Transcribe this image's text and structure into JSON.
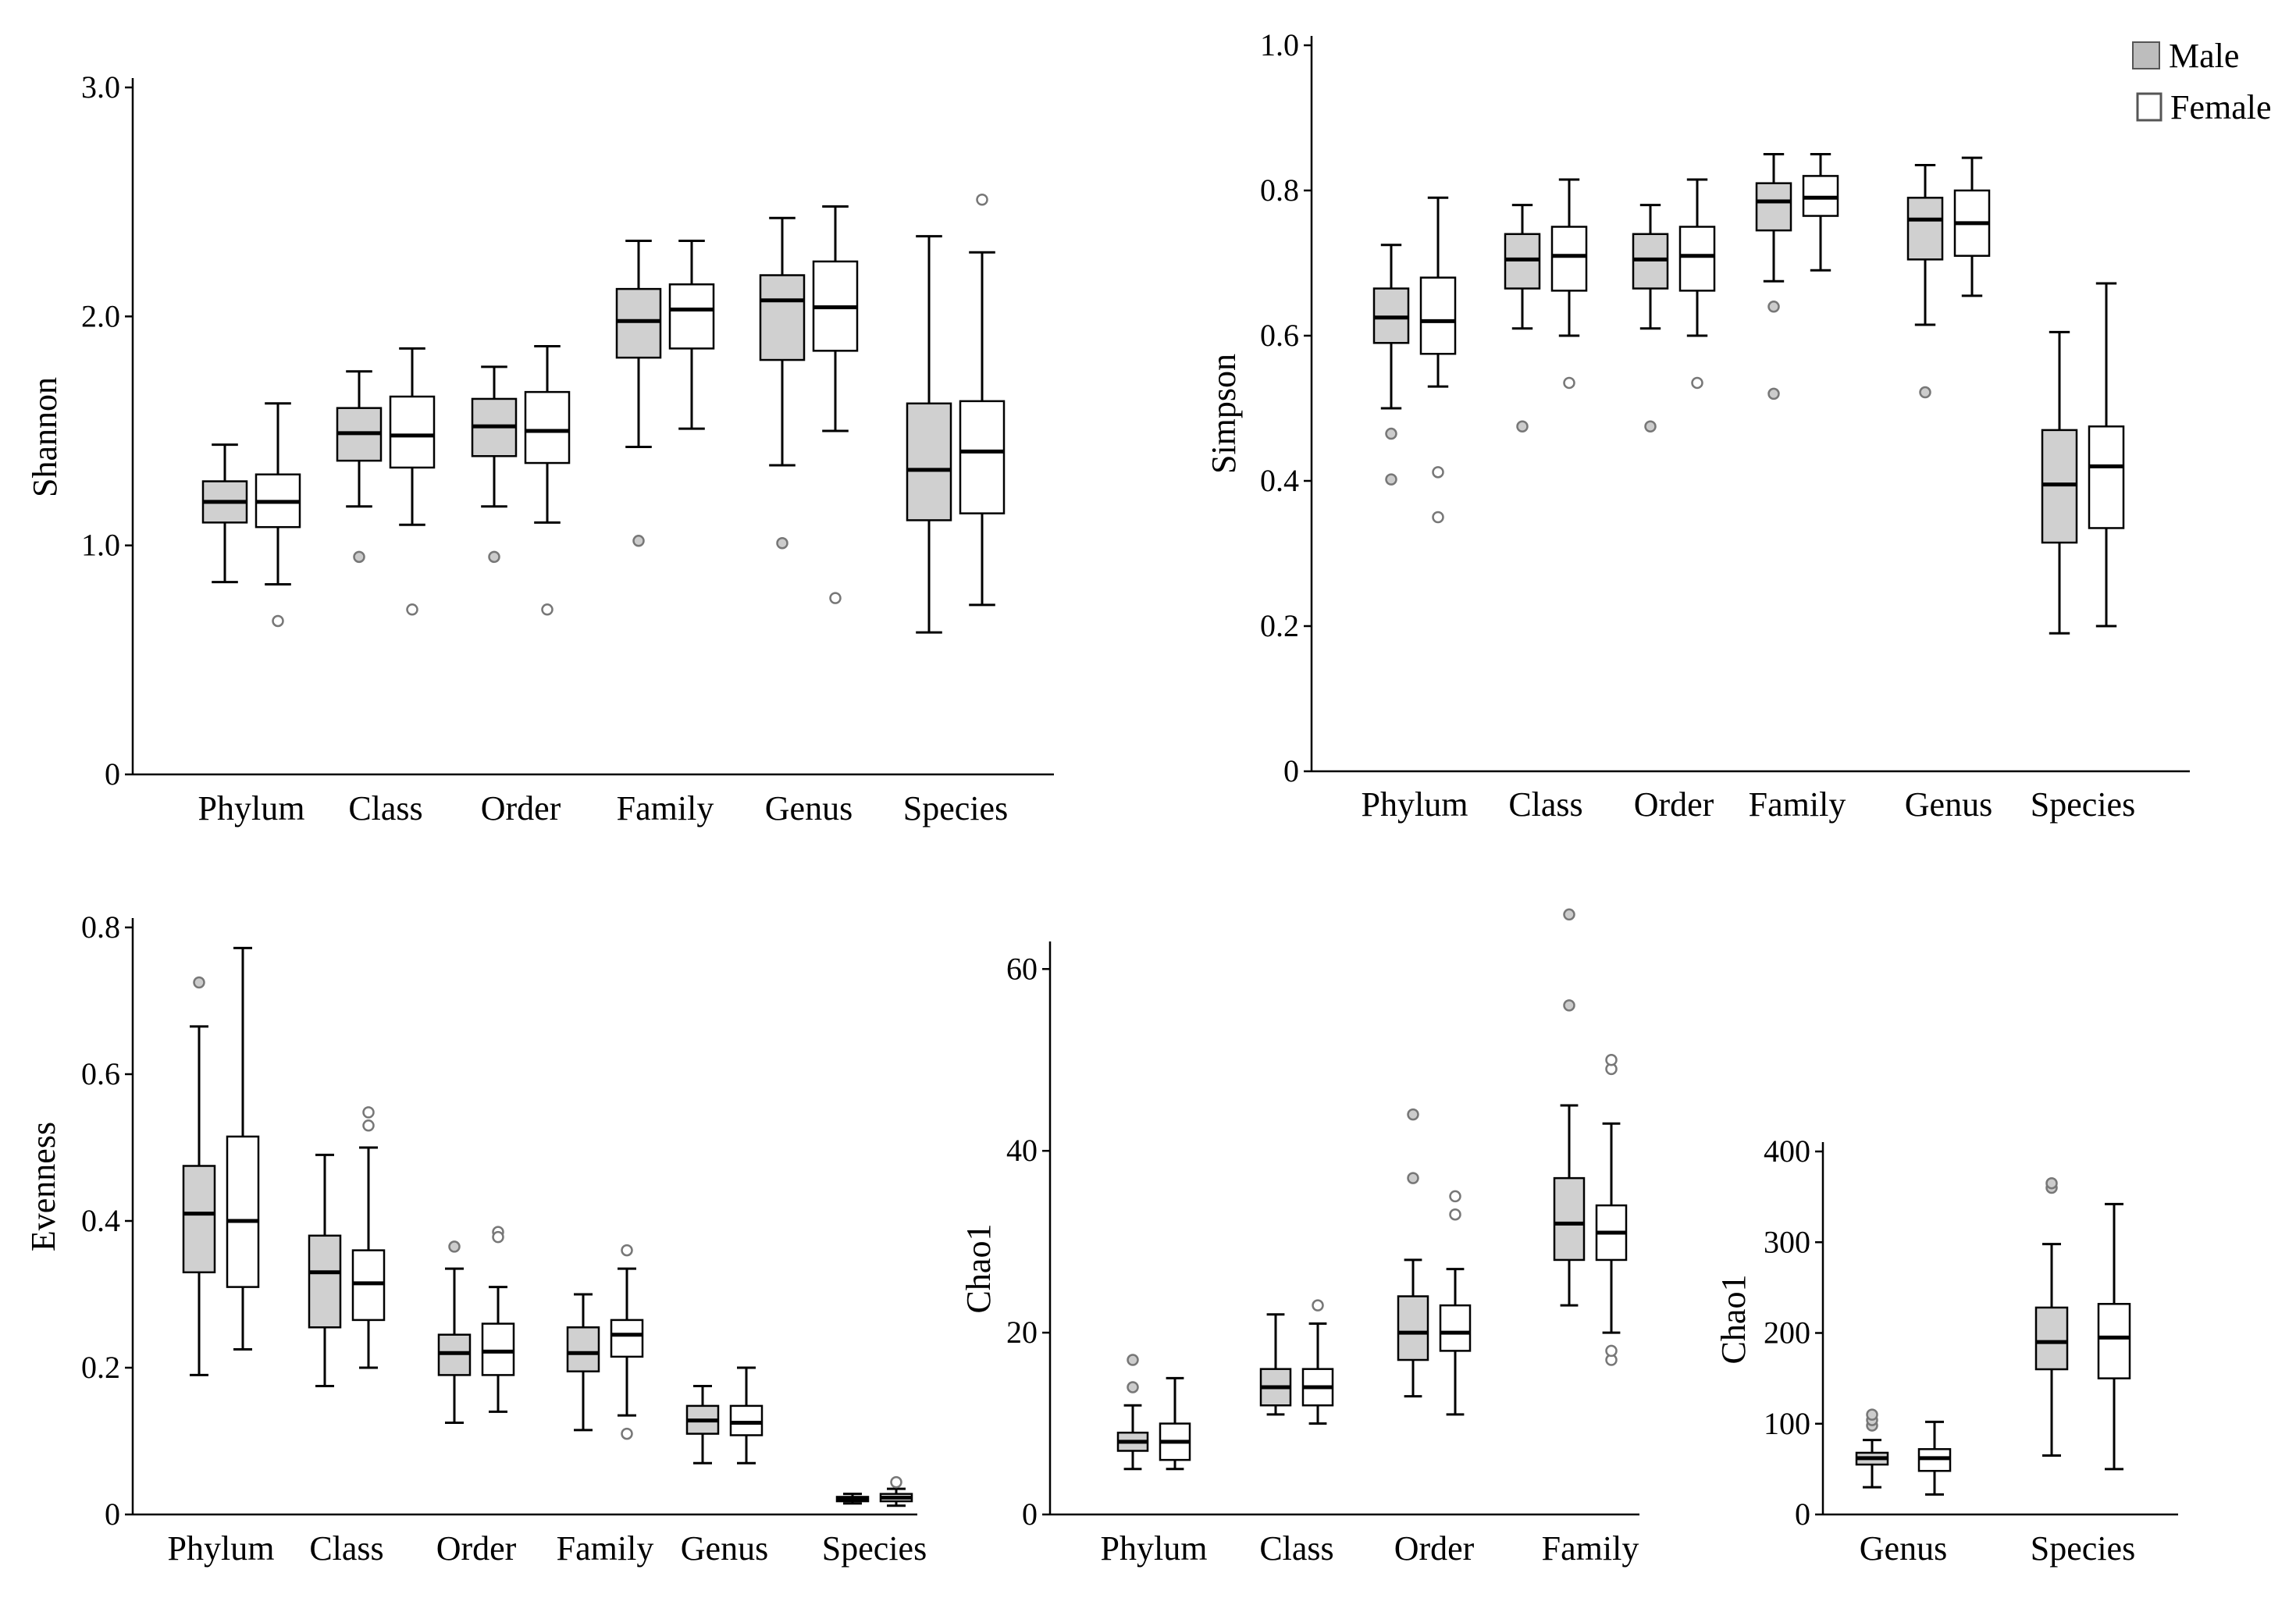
{
  "legend": {
    "male": "Male",
    "female": "Female"
  },
  "colors": {
    "male": "#d0d0d0",
    "female": "#ffffff",
    "stroke": "#000000",
    "outlier": "#777777"
  },
  "chart_data": [
    {
      "id": "shannon",
      "type": "box",
      "ylabel": "Shannon",
      "ylim": [
        0,
        3.0
      ],
      "yticks": [
        0,
        1.0,
        2.0,
        3.0
      ],
      "ytick_labels": [
        "0",
        "1.0",
        "2.0",
        "3.0"
      ],
      "categories": [
        "Phylum",
        "Class",
        "Order",
        "Family",
        "Genus",
        "Species"
      ],
      "series": [
        {
          "name": "Male",
          "boxes": [
            {
              "min": 0.84,
              "q1": 1.1,
              "median": 1.19,
              "q3": 1.28,
              "max": 1.44,
              "outliers": []
            },
            {
              "min": 1.17,
              "q1": 1.37,
              "median": 1.49,
              "q3": 1.6,
              "max": 1.76,
              "outliers": [
                0.95
              ]
            },
            {
              "min": 1.17,
              "q1": 1.39,
              "median": 1.52,
              "q3": 1.64,
              "max": 1.78,
              "outliers": [
                0.95
              ]
            },
            {
              "min": 1.43,
              "q1": 1.82,
              "median": 1.98,
              "q3": 2.12,
              "max": 2.33,
              "outliers": [
                1.02
              ]
            },
            {
              "min": 1.35,
              "q1": 1.81,
              "median": 2.07,
              "q3": 2.18,
              "max": 2.43,
              "outliers": [
                1.01
              ]
            },
            {
              "min": 0.62,
              "q1": 1.11,
              "median": 1.33,
              "q3": 1.62,
              "max": 2.35,
              "outliers": []
            }
          ]
        },
        {
          "name": "Female",
          "boxes": [
            {
              "min": 0.83,
              "q1": 1.08,
              "median": 1.19,
              "q3": 1.31,
              "max": 1.62,
              "outliers": [
                0.67
              ]
            },
            {
              "min": 1.09,
              "q1": 1.34,
              "median": 1.48,
              "q3": 1.65,
              "max": 1.86,
              "outliers": [
                0.72
              ]
            },
            {
              "min": 1.1,
              "q1": 1.36,
              "median": 1.5,
              "q3": 1.67,
              "max": 1.87,
              "outliers": [
                0.72
              ]
            },
            {
              "min": 1.51,
              "q1": 1.86,
              "median": 2.03,
              "q3": 2.14,
              "max": 2.33,
              "outliers": []
            },
            {
              "min": 1.5,
              "q1": 1.85,
              "median": 2.04,
              "q3": 2.24,
              "max": 2.48,
              "outliers": [
                0.77
              ]
            },
            {
              "min": 0.74,
              "q1": 1.14,
              "median": 1.41,
              "q3": 1.63,
              "max": 2.28,
              "outliers": [
                2.51
              ]
            }
          ]
        }
      ]
    },
    {
      "id": "simpson",
      "type": "box",
      "ylabel": "Simpson",
      "ylim": [
        0,
        1.0
      ],
      "yticks": [
        0,
        0.2,
        0.4,
        0.6,
        0.8,
        1.0
      ],
      "ytick_labels": [
        "0",
        "0.2",
        "0.4",
        "0.6",
        "0.8",
        "1.0"
      ],
      "categories": [
        "Phylum",
        "Class",
        "Order",
        "Family",
        "Genus",
        "Species"
      ],
      "series": [
        {
          "name": "Male",
          "boxes": [
            {
              "min": 0.5,
              "q1": 0.59,
              "median": 0.625,
              "q3": 0.665,
              "max": 0.725,
              "outliers": [
                0.465,
                0.402
              ]
            },
            {
              "min": 0.61,
              "q1": 0.665,
              "median": 0.705,
              "q3": 0.74,
              "max": 0.78,
              "outliers": [
                0.475
              ]
            },
            {
              "min": 0.61,
              "q1": 0.665,
              "median": 0.705,
              "q3": 0.74,
              "max": 0.78,
              "outliers": [
                0.475
              ]
            },
            {
              "min": 0.675,
              "q1": 0.745,
              "median": 0.785,
              "q3": 0.81,
              "max": 0.85,
              "outliers": [
                0.64,
                0.52
              ]
            },
            {
              "min": 0.615,
              "q1": 0.705,
              "median": 0.76,
              "q3": 0.79,
              "max": 0.835,
              "outliers": [
                0.522
              ]
            },
            {
              "min": 0.19,
              "q1": 0.315,
              "median": 0.395,
              "q3": 0.47,
              "max": 0.605,
              "outliers": []
            }
          ]
        },
        {
          "name": "Female",
          "boxes": [
            {
              "min": 0.53,
              "q1": 0.575,
              "median": 0.62,
              "q3": 0.68,
              "max": 0.79,
              "outliers": [
                0.412,
                0.35
              ]
            },
            {
              "min": 0.6,
              "q1": 0.662,
              "median": 0.71,
              "q3": 0.75,
              "max": 0.815,
              "outliers": [
                0.535
              ]
            },
            {
              "min": 0.6,
              "q1": 0.662,
              "median": 0.71,
              "q3": 0.75,
              "max": 0.815,
              "outliers": [
                0.535
              ]
            },
            {
              "min": 0.69,
              "q1": 0.765,
              "median": 0.79,
              "q3": 0.82,
              "max": 0.85,
              "outliers": []
            },
            {
              "min": 0.655,
              "q1": 0.71,
              "median": 0.755,
              "q3": 0.8,
              "max": 0.845,
              "outliers": []
            },
            {
              "min": 0.2,
              "q1": 0.335,
              "median": 0.42,
              "q3": 0.475,
              "max": 0.672,
              "outliers": []
            }
          ]
        }
      ]
    },
    {
      "id": "evenness",
      "type": "box",
      "ylabel": "Evenness",
      "ylim": [
        0,
        0.8
      ],
      "yticks": [
        0,
        0.2,
        0.4,
        0.6,
        0.8
      ],
      "ytick_labels": [
        "0",
        "0.2",
        "0.4",
        "0.6",
        "0.8"
      ],
      "categories": [
        "Phylum",
        "Class",
        "Order",
        "Family",
        "Genus",
        "Species"
      ],
      "series": [
        {
          "name": "Male",
          "boxes": [
            {
              "min": 0.19,
              "q1": 0.33,
              "median": 0.41,
              "q3": 0.475,
              "max": 0.665,
              "outliers": [
                0.725
              ]
            },
            {
              "min": 0.175,
              "q1": 0.255,
              "median": 0.33,
              "q3": 0.38,
              "max": 0.49,
              "outliers": []
            },
            {
              "min": 0.125,
              "q1": 0.19,
              "median": 0.22,
              "q3": 0.245,
              "max": 0.335,
              "outliers": [
                0.365
              ]
            },
            {
              "min": 0.115,
              "q1": 0.195,
              "median": 0.22,
              "q3": 0.255,
              "max": 0.3,
              "outliers": []
            },
            {
              "min": 0.07,
              "q1": 0.11,
              "median": 0.128,
              "q3": 0.148,
              "max": 0.175,
              "outliers": []
            },
            {
              "min": 0.015,
              "q1": 0.018,
              "median": 0.021,
              "q3": 0.024,
              "max": 0.028,
              "outliers": []
            }
          ]
        },
        {
          "name": "Female",
          "boxes": [
            {
              "min": 0.225,
              "q1": 0.31,
              "median": 0.4,
              "q3": 0.515,
              "max": 0.772,
              "outliers": []
            },
            {
              "min": 0.2,
              "q1": 0.265,
              "median": 0.315,
              "q3": 0.36,
              "max": 0.5,
              "outliers": [
                0.548,
                0.53
              ]
            },
            {
              "min": 0.14,
              "q1": 0.19,
              "median": 0.222,
              "q3": 0.26,
              "max": 0.31,
              "outliers": [
                0.385,
                0.378
              ]
            },
            {
              "min": 0.135,
              "q1": 0.215,
              "median": 0.245,
              "q3": 0.265,
              "max": 0.335,
              "outliers": [
                0.36,
                0.11
              ]
            },
            {
              "min": 0.07,
              "q1": 0.108,
              "median": 0.125,
              "q3": 0.148,
              "max": 0.2,
              "outliers": []
            },
            {
              "min": 0.012,
              "q1": 0.018,
              "median": 0.023,
              "q3": 0.028,
              "max": 0.035,
              "outliers": [
                0.044
              ]
            }
          ]
        }
      ]
    },
    {
      "id": "chao1_a",
      "type": "box",
      "ylabel": "Chao1",
      "ylim": [
        0,
        62
      ],
      "yticks": [
        0,
        20,
        40,
        60
      ],
      "ytick_labels": [
        "0",
        "20",
        "40",
        "60"
      ],
      "categories": [
        "Phylum",
        "Class",
        "Order",
        "Family"
      ],
      "series": [
        {
          "name": "Male",
          "boxes": [
            {
              "min": 5,
              "q1": 7,
              "median": 8,
              "q3": 9,
              "max": 12,
              "outliers": [
                14,
                17
              ]
            },
            {
              "min": 11,
              "q1": 12,
              "median": 14,
              "q3": 16,
              "max": 22,
              "outliers": []
            },
            {
              "min": 13,
              "q1": 17,
              "median": 20,
              "q3": 24,
              "max": 28,
              "outliers": [
                37,
                44
              ]
            },
            {
              "min": 23,
              "q1": 28,
              "median": 32,
              "q3": 37,
              "max": 45,
              "outliers": [
                56,
                66
              ]
            }
          ]
        },
        {
          "name": "Female",
          "boxes": [
            {
              "min": 5,
              "q1": 6,
              "median": 8,
              "q3": 10,
              "max": 15,
              "outliers": []
            },
            {
              "min": 10,
              "q1": 12,
              "median": 14,
              "q3": 16,
              "max": 21,
              "outliers": [
                23
              ]
            },
            {
              "min": 11,
              "q1": 18,
              "median": 20,
              "q3": 23,
              "max": 27,
              "outliers": [
                33,
                35
              ]
            },
            {
              "min": 20,
              "q1": 28,
              "median": 31,
              "q3": 34,
              "max": 43,
              "outliers": [
                17,
                18,
                49,
                50
              ]
            }
          ]
        }
      ]
    },
    {
      "id": "chao1_b",
      "type": "box",
      "ylabel": "Chao1",
      "ylim": [
        0,
        400
      ],
      "yticks": [
        0,
        100,
        200,
        300,
        400
      ],
      "ytick_labels": [
        "0",
        "100",
        "200",
        "300",
        "400"
      ],
      "categories": [
        "Genus",
        "Species"
      ],
      "series": [
        {
          "name": "Male",
          "boxes": [
            {
              "min": 30,
              "q1": 55,
              "median": 62,
              "q3": 68,
              "max": 82,
              "outliers": [
                98,
                104,
                110
              ]
            },
            {
              "min": 65,
              "q1": 160,
              "median": 190,
              "q3": 228,
              "max": 298,
              "outliers": [
                360,
                365
              ]
            }
          ]
        },
        {
          "name": "Female",
          "boxes": [
            {
              "min": 22,
              "q1": 48,
              "median": 62,
              "q3": 72,
              "max": 102,
              "outliers": []
            },
            {
              "min": 50,
              "q1": 150,
              "median": 195,
              "q3": 232,
              "max": 342,
              "outliers": []
            }
          ]
        }
      ]
    }
  ]
}
